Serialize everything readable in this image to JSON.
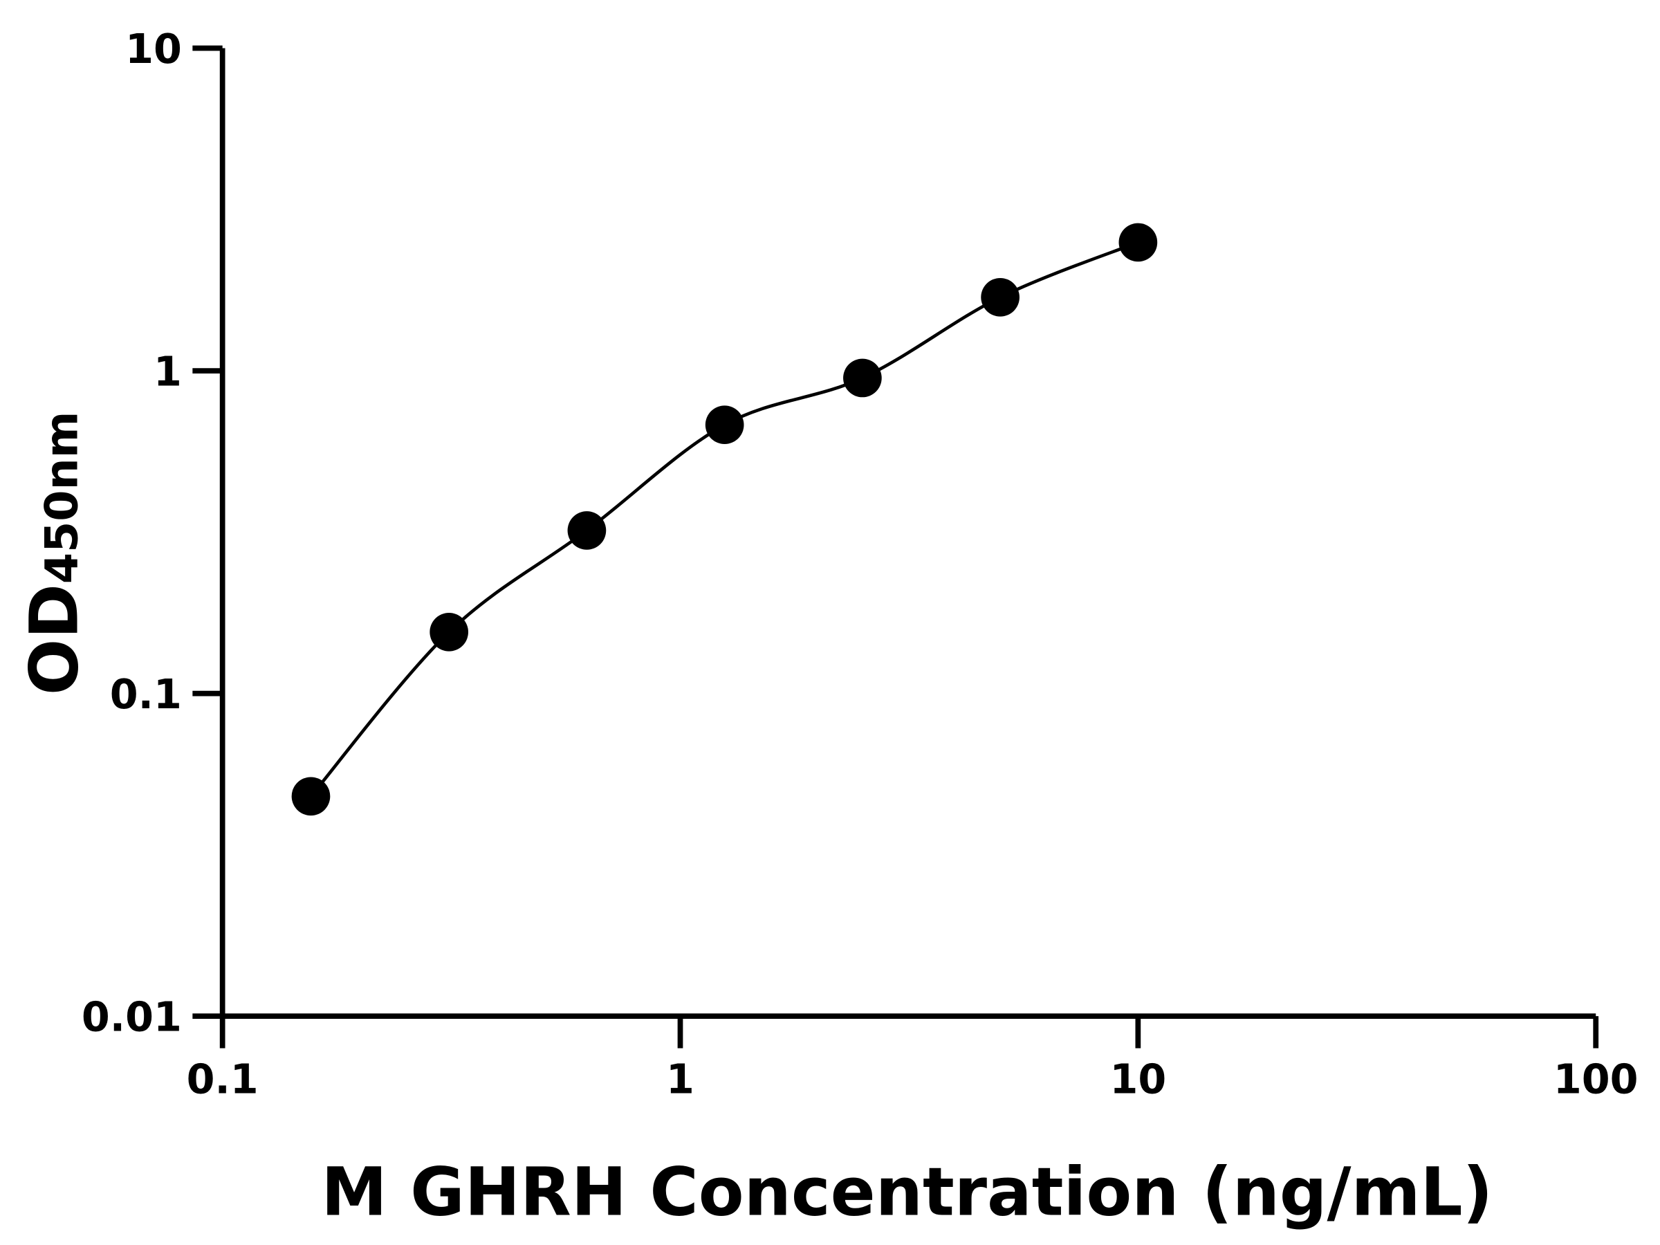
{
  "chart_data": {
    "type": "scatter",
    "x_label": "M GHRH Concentration (ng/mL)",
    "y_label": "OD",
    "y_label_subscript": "450nm",
    "x": [
      0.156,
      0.3125,
      0.625,
      1.25,
      2.5,
      5,
      10
    ],
    "series": [
      {
        "color": "#000000",
        "values": [
          0.048,
          0.155,
          0.32,
          0.68,
          0.95,
          1.69,
          2.5
        ]
      }
    ],
    "line": true,
    "xscale": "log",
    "yscale": "log",
    "xlim": [
      0.1,
      100
    ],
    "xticks": [
      0.1,
      1,
      10,
      100
    ],
    "ylim": [
      0.01,
      10
    ],
    "yticks": [
      0.01,
      0.1,
      1,
      10
    ]
  }
}
